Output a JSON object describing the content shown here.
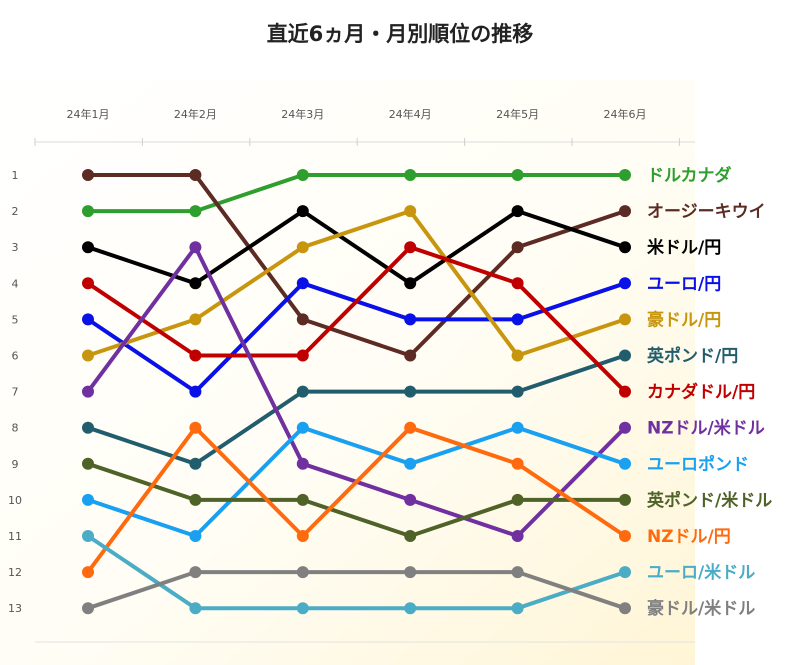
{
  "chart_data": {
    "type": "line",
    "title": "直近6ヵ月・月別順位の推移",
    "categories": [
      "24年1月",
      "24年2月",
      "24年3月",
      "24年4月",
      "24年5月",
      "24年6月"
    ],
    "y_ticks": [
      1,
      2,
      3,
      4,
      5,
      6,
      7,
      8,
      9,
      10,
      11,
      12,
      13
    ],
    "ylim": [
      1,
      13
    ],
    "y_inverted": true,
    "legend_position": "right (labels at line ends)",
    "series": [
      {
        "name": "ドルカナダ",
        "color": "#2e9e2e",
        "values": [
          2,
          2,
          1,
          1,
          1,
          1
        ]
      },
      {
        "name": "オージーキウイ",
        "color": "#5c2b24",
        "values": [
          1,
          1,
          5,
          6,
          3,
          2
        ]
      },
      {
        "name": "米ドル/円",
        "color": "#000000",
        "values": [
          3,
          4,
          2,
          4,
          2,
          3
        ]
      },
      {
        "name": "ユーロ/円",
        "color": "#0a10e8",
        "values": [
          5,
          7,
          4,
          5,
          5,
          4
        ]
      },
      {
        "name": "豪ドル/円",
        "color": "#c8960e",
        "values": [
          6,
          5,
          3,
          2,
          6,
          5
        ]
      },
      {
        "name": "英ポンド/円",
        "color": "#225d6e",
        "values": [
          8,
          9,
          7,
          7,
          7,
          6
        ]
      },
      {
        "name": "カナダドル/円",
        "color": "#c00000",
        "values": [
          4,
          6,
          6,
          3,
          4,
          7
        ]
      },
      {
        "name": "NZドル/米ドル",
        "color": "#7030a0",
        "values": [
          7,
          3,
          9,
          10,
          11,
          8
        ]
      },
      {
        "name": "ユーロポンド",
        "color": "#1aa0f0",
        "values": [
          10,
          11,
          8,
          9,
          8,
          9
        ]
      },
      {
        "name": "英ポンド/米ドル",
        "color": "#4f6228",
        "values": [
          9,
          10,
          10,
          11,
          10,
          10
        ]
      },
      {
        "name": "NZドル/円",
        "color": "#ff6a0e",
        "values": [
          12,
          8,
          11,
          8,
          9,
          11
        ]
      },
      {
        "name": "ユーロ/米ドル",
        "color": "#4bacc6",
        "values": [
          11,
          13,
          13,
          13,
          13,
          12
        ]
      },
      {
        "name": "豪ドル/米ドル",
        "color": "#808080",
        "values": [
          13,
          12,
          12,
          12,
          12,
          13
        ]
      }
    ]
  }
}
